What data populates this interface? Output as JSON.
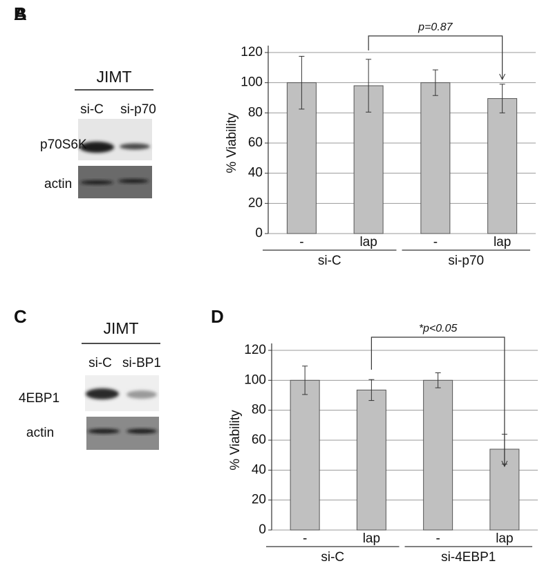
{
  "blots": [
    {
      "panel": "A",
      "cell_line": "JIMT",
      "lanes": [
        "si-C",
        "si-p70"
      ],
      "rows": [
        "p70S6K",
        "actin"
      ]
    },
    {
      "panel": "C",
      "cell_line": "JIMT",
      "lanes": [
        "si-C",
        "si-BP1"
      ],
      "rows": [
        "4EBP1",
        "actin"
      ]
    }
  ],
  "chart_data": [
    {
      "type": "bar",
      "panel": "B",
      "y_label": "% Viability",
      "categories": [
        "-",
        "lap",
        "-",
        "lap"
      ],
      "groups": [
        "si-C",
        "si-p70"
      ],
      "values": [
        100,
        98,
        100,
        89.5
      ],
      "errors": [
        17.5,
        17.5,
        8.5,
        9.5
      ],
      "color": "#c0c0c0",
      "ylim": [
        0,
        120
      ],
      "yticks": [
        0,
        20,
        40,
        60,
        80,
        100,
        120
      ],
      "grid": true,
      "annotation": "p=0.87"
    },
    {
      "type": "bar",
      "panel": "D",
      "y_label": "% Viability",
      "categories": [
        "-",
        "lap",
        "-",
        "lap"
      ],
      "groups": [
        "si-C",
        "si-4EBP1"
      ],
      "values": [
        100,
        93.5,
        100,
        54
      ],
      "errors": [
        9.5,
        7,
        5,
        10
      ],
      "color": "#c0c0c0",
      "ylim": [
        0,
        120
      ],
      "yticks": [
        0,
        20,
        40,
        60,
        80,
        100,
        120
      ],
      "grid": true,
      "annotation": "*p<0.05"
    }
  ]
}
